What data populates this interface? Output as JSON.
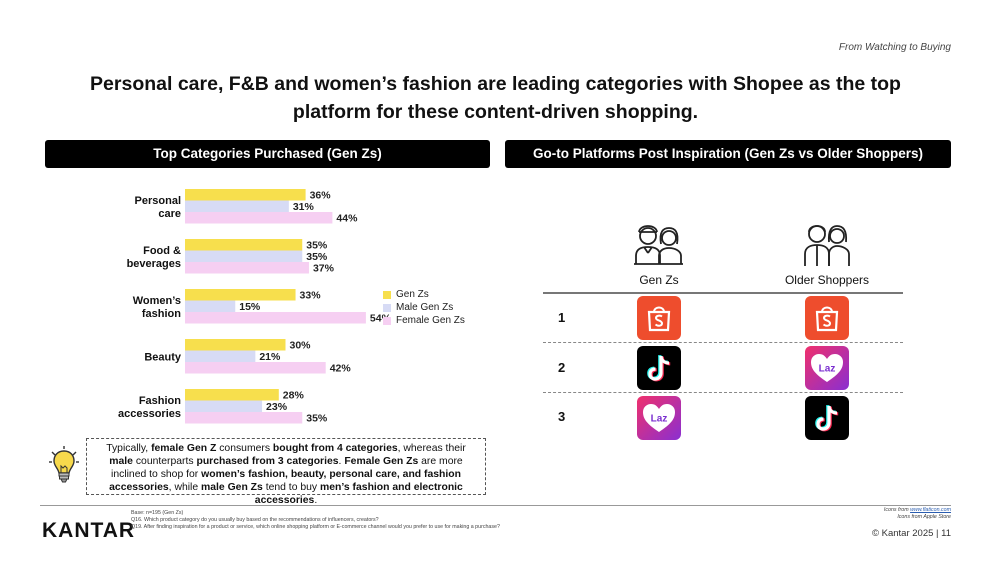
{
  "header": {
    "section_tag": "From Watching to Buying",
    "headline_line1": "Personal care, F&B and women’s fashion are leading categories with Shopee as the top",
    "headline_line2": "platform for these content-driven shopping."
  },
  "left_panel": {
    "title": "Top Categories Purchased (Gen Zs)"
  },
  "right_panel": {
    "title": "Go-to Platforms Post Inspiration (Gen Zs vs Older Shoppers)"
  },
  "chart_data": {
    "type": "bar",
    "orientation": "horizontal",
    "unit": "%",
    "categories": [
      [
        "Personal",
        "care"
      ],
      [
        "Food &",
        "beverages"
      ],
      [
        "Women’s",
        "fashion"
      ],
      [
        "Beauty"
      ],
      [
        "Fashion",
        "accessories"
      ]
    ],
    "series": [
      {
        "name": "Gen Zs",
        "color": "#f7df4d",
        "values": [
          36,
          35,
          33,
          30,
          28
        ]
      },
      {
        "name": "Male Gen Zs",
        "color": "#d7dbf5",
        "values": [
          31,
          35,
          15,
          21,
          23
        ]
      },
      {
        "name": "Female Gen Zs",
        "color": "#f6cff2",
        "values": [
          44,
          37,
          54,
          42,
          35
        ]
      }
    ],
    "xlim": [
      0,
      60
    ],
    "grid": false,
    "legend_position": "right"
  },
  "callout": {
    "p1": "Typically, ",
    "b1": "female Gen Z",
    "p2": " consumers ",
    "b2": "bought from 4 categories",
    "p3": ", whereas their ",
    "b3": "male",
    "p4": " counterparts ",
    "b4": "purchased from 3 categories",
    "p5": ". ",
    "b5": "Female Gen Zs",
    "p6": " are more inclined to shop for ",
    "b6": "women’s fashion, beauty, personal care, and fashion accessories",
    "p7": ", while ",
    "b7": "male Gen Zs",
    "p8": " tend to buy ",
    "b8": "men’s fashion and electronic accessories",
    "p9": "."
  },
  "platforms": {
    "columns": [
      "Gen Zs",
      "Older Shoppers"
    ],
    "ranks": [
      "1",
      "2",
      "3"
    ],
    "gen_zs": [
      "Shopee",
      "TikTok",
      "Lazada"
    ],
    "older_shoppers": [
      "Shopee",
      "Lazada",
      "TikTok"
    ],
    "lazada_text": "Laz",
    "colors": {
      "shopee": "#ee4d2d",
      "tiktok": "#000000",
      "lazada_from": "#e8246c",
      "lazada_to": "#7a2fcf"
    }
  },
  "footer": {
    "brand": "KANTAR",
    "base": "Base: n=195 (Gen Zs)",
    "q16": "Q16. Which product category do you usually buy based on the recommendations of influencers, creators?",
    "q19": "Q19. After finding inspiration for a product or service, which online shopping platform or E-commerce channel would you prefer to use for making a purchase?",
    "icons_from": "Icons from ",
    "icons_link": "www.flaticon.com",
    "icons_apple": "Icons from Apple Store",
    "copyright": "© Kantar 2025 | 11"
  }
}
